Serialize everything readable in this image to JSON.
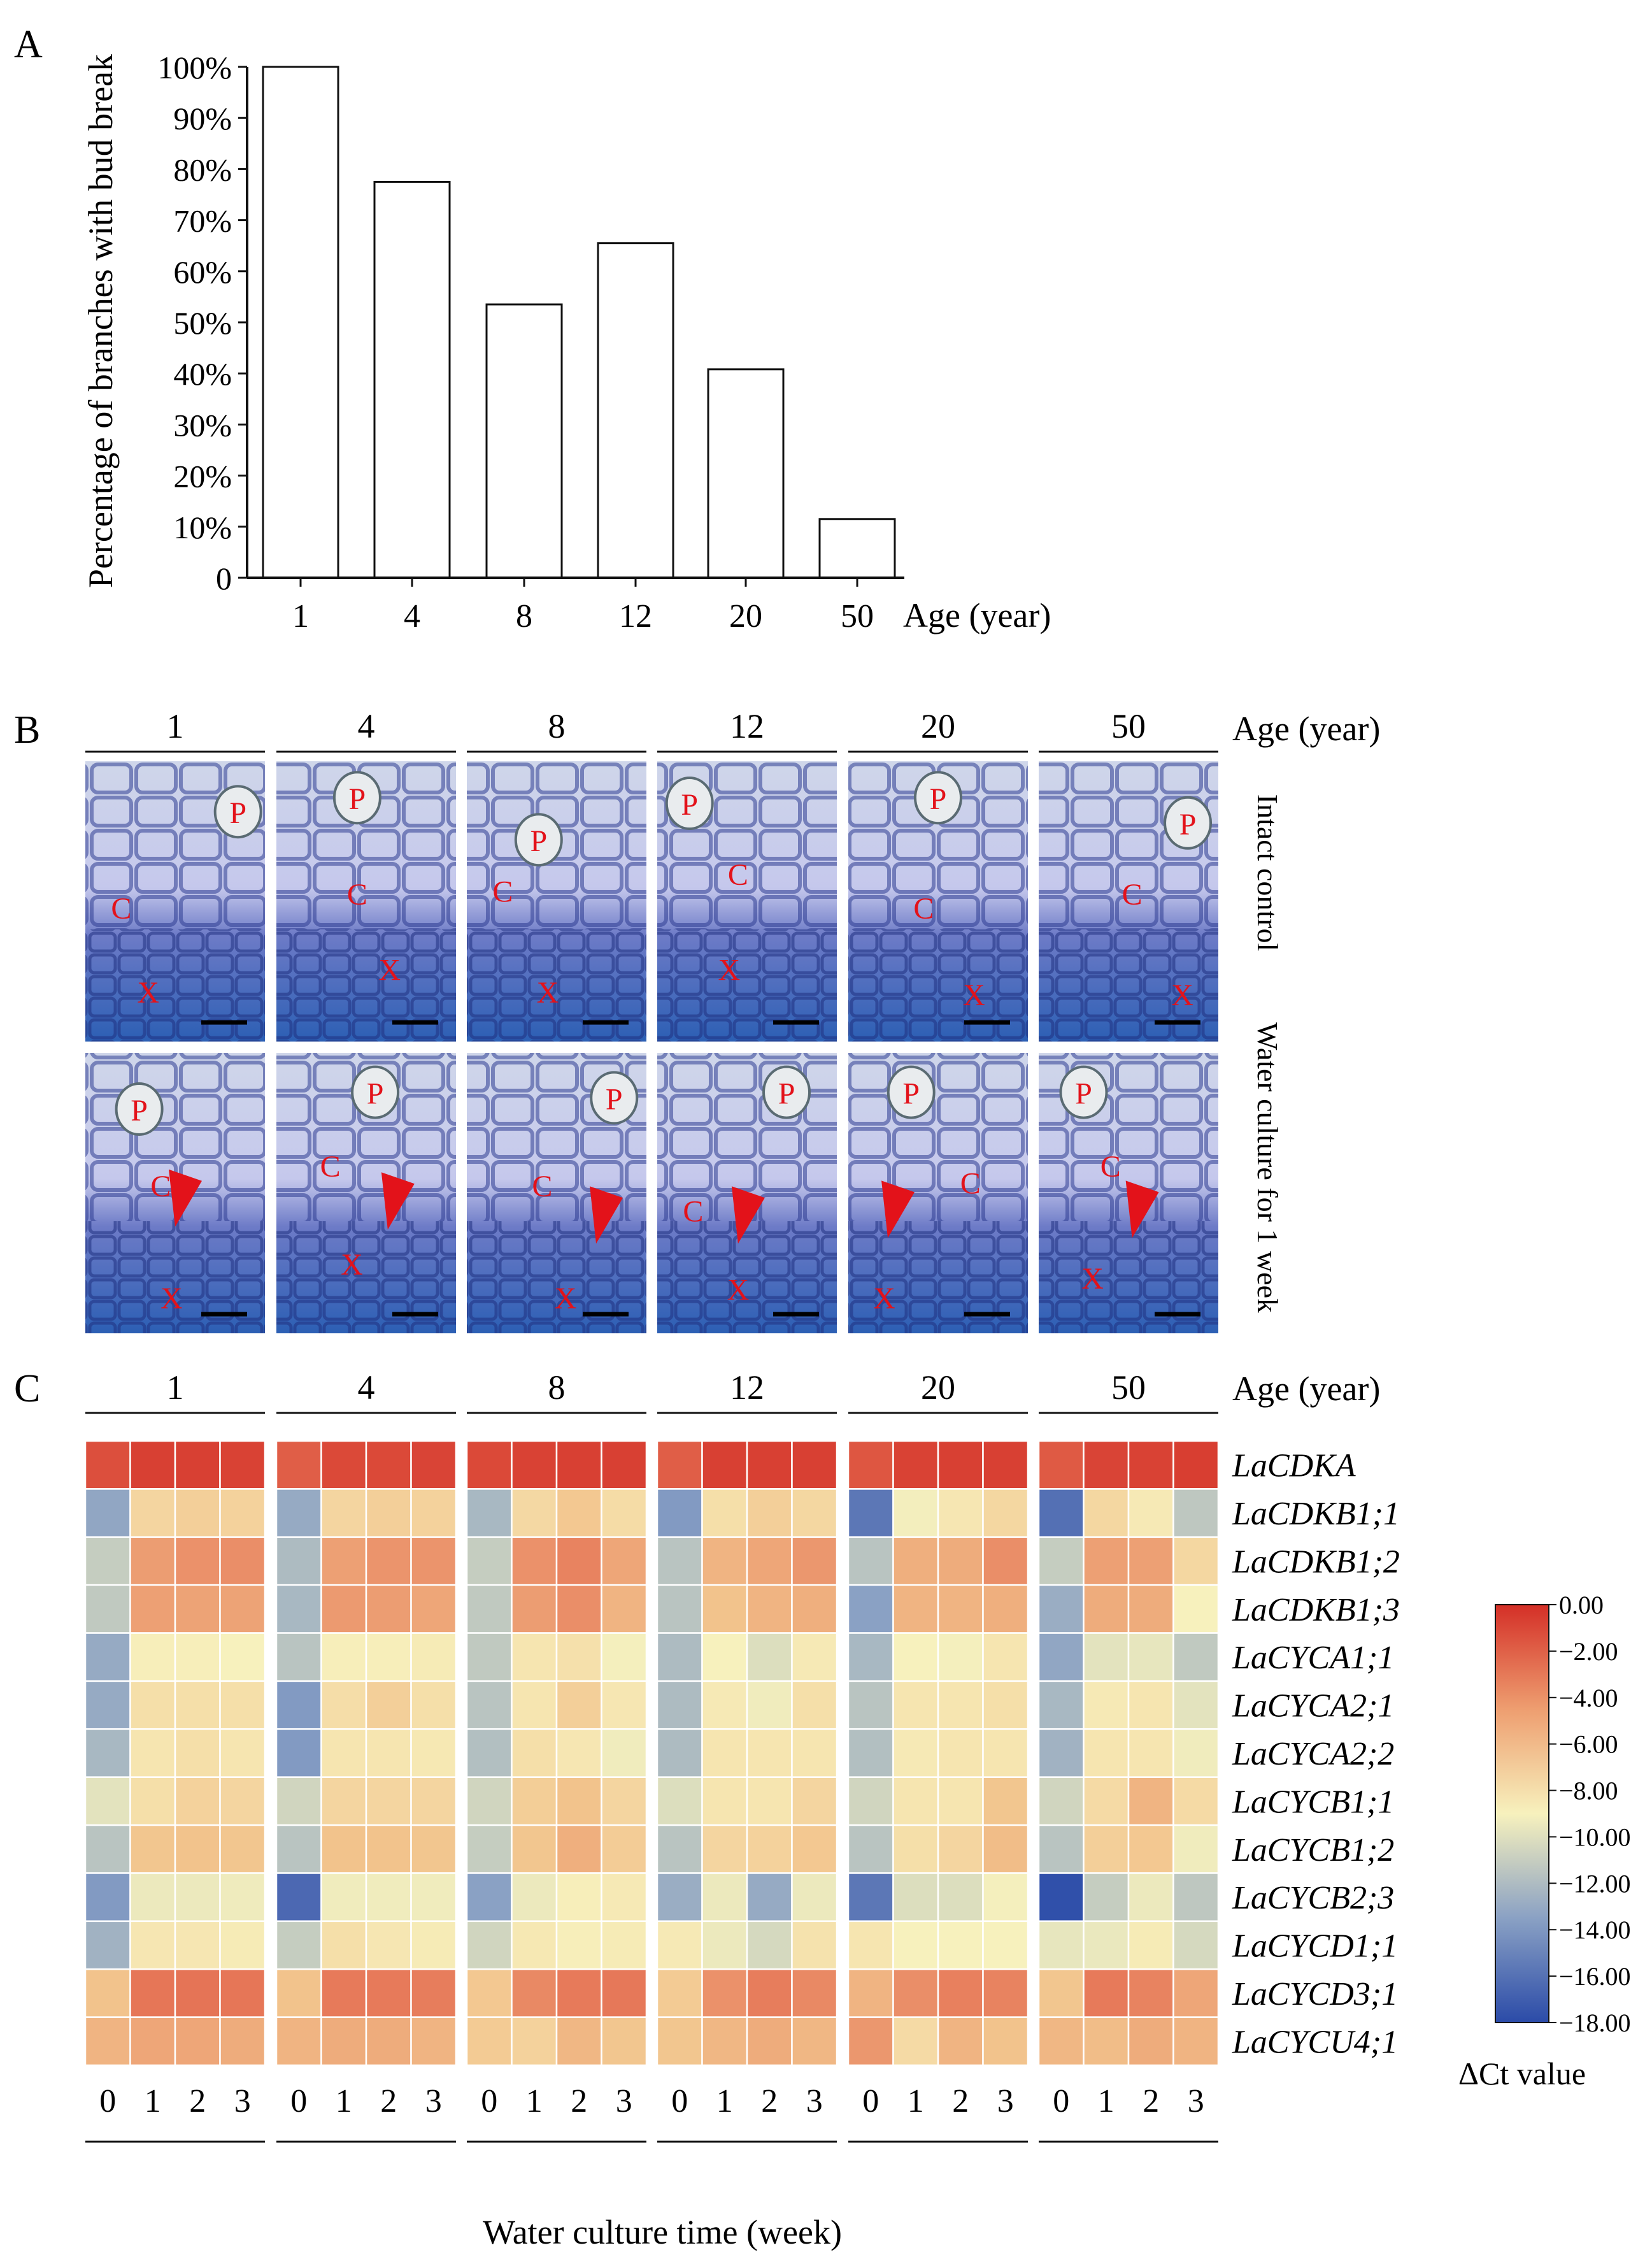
{
  "panel_labels": {
    "a": "A",
    "b": "B",
    "c": "C"
  },
  "colors": {
    "bar_fill": "#ffffff",
    "stroke": "#111111",
    "micrograph_label": "#e3121a",
    "arrowhead": "#e3121a",
    "stain_dark": "#2a3f9c",
    "stain_light": "#dfe6f2",
    "heat_low": "#2b4ba8",
    "heat_mid": "#f7f1bd",
    "heat_high": "#d42f27"
  },
  "chart_data": [
    {
      "type": "bar",
      "panel": "A",
      "categories": [
        "1",
        "4",
        "8",
        "12",
        "20",
        "50"
      ],
      "values": [
        100,
        77.5,
        53.5,
        65.5,
        40.8,
        11.5
      ],
      "ylim": [
        0,
        100
      ],
      "yticks": [
        "0",
        "10%",
        "20%",
        "30%",
        "40%",
        "50%",
        "60%",
        "70%",
        "80%",
        "90%",
        "100%"
      ],
      "ylabel": "Percentage of branches with bud break",
      "xlabel": "Age (year)",
      "grid": false
    },
    {
      "type": "heatmap",
      "panel": "C",
      "age_groups": [
        "1",
        "4",
        "8",
        "12",
        "20",
        "50"
      ],
      "group_title": "Age (year)",
      "weeks": [
        "0",
        "1",
        "2",
        "3"
      ],
      "xlabel": "Water culture time (week)",
      "genes": [
        "LaCDKA",
        "LaCDKB1;1",
        "LaCDKB1;2",
        "LaCDKB1;3",
        "LaCYCA1;1",
        "LaCYCA2;1",
        "LaCYCA2;2",
        "LaCYCB1;1",
        "LaCYCB1;2",
        "LaCYCB2;3",
        "LaCYCD1;1",
        "LaCYCD3;1",
        "LaCYCU4;1"
      ],
      "colorbar": {
        "label": "ΔCt value",
        "min": -18,
        "max": 0,
        "ticks": [
          "0.00",
          "−2.00",
          "−4.00",
          "−6.00",
          "−8.00",
          "−10.00",
          "−12.00",
          "−14.00",
          "−16.00",
          "−18.00"
        ]
      },
      "values": [
        [
          [
            -1.5,
            -0.8,
            -0.8,
            -0.9
          ],
          [
            -2.2,
            -1.2,
            -1.2,
            -1.0
          ],
          [
            -1.2,
            -0.9,
            -0.8,
            -0.8
          ],
          [
            -2.2,
            -0.8,
            -0.8,
            -0.8
          ],
          [
            -1.8,
            -0.9,
            -0.8,
            -0.8
          ],
          [
            -2.0,
            -1.0,
            -0.9,
            -0.7
          ]
        ],
        [
          [
            -14.2,
            -7.2,
            -6.8,
            -7.0
          ],
          [
            -14.0,
            -7.2,
            -6.8,
            -7.0
          ],
          [
            -13.2,
            -7.4,
            -6.3,
            -7.6
          ],
          [
            -14.8,
            -7.8,
            -6.8,
            -7.3
          ],
          [
            -16.2,
            -9.3,
            -8.3,
            -7.3
          ],
          [
            -16.5,
            -7.3,
            -8.5,
            -12.3
          ]
        ],
        [
          [
            -12.0,
            -4.7,
            -4.3,
            -4.2
          ],
          [
            -13.0,
            -4.8,
            -4.4,
            -4.4
          ],
          [
            -12.0,
            -4.3,
            -3.8,
            -5.0
          ],
          [
            -12.5,
            -5.5,
            -5.0,
            -4.5
          ],
          [
            -12.5,
            -5.3,
            -5.2,
            -4.2
          ],
          [
            -12.0,
            -4.8,
            -4.8,
            -7.3
          ]
        ],
        [
          [
            -12.2,
            -4.8,
            -4.9,
            -4.9
          ],
          [
            -13.2,
            -4.6,
            -4.7,
            -5.0
          ],
          [
            -12.2,
            -4.7,
            -4.2,
            -5.5
          ],
          [
            -12.5,
            -6.0,
            -5.5,
            -5.3
          ],
          [
            -14.5,
            -5.5,
            -5.5,
            -5.3
          ],
          [
            -13.8,
            -5.2,
            -5.2,
            -9.0
          ]
        ],
        [
          [
            -14.0,
            -8.8,
            -8.8,
            -9.0
          ],
          [
            -12.5,
            -8.8,
            -8.8,
            -8.6
          ],
          [
            -12.2,
            -8.2,
            -7.9,
            -9.2
          ],
          [
            -13.0,
            -9.0,
            -11.0,
            -8.5
          ],
          [
            -13.2,
            -9.0,
            -9.2,
            -8.2
          ],
          [
            -14.2,
            -10.5,
            -10.2,
            -12.2
          ]
        ],
        [
          [
            -14.0,
            -7.8,
            -7.8,
            -7.8
          ],
          [
            -14.8,
            -7.7,
            -6.8,
            -7.8
          ],
          [
            -12.5,
            -8.2,
            -6.8,
            -8.3
          ],
          [
            -13.0,
            -8.5,
            -9.5,
            -7.8
          ],
          [
            -12.5,
            -8.2,
            -8.2,
            -7.8
          ],
          [
            -13.2,
            -8.5,
            -8.2,
            -10.5
          ]
        ],
        [
          [
            -13.2,
            -8.2,
            -7.8,
            -8.2
          ],
          [
            -14.8,
            -8.2,
            -8.2,
            -8.4
          ],
          [
            -12.8,
            -7.8,
            -8.3,
            -9.5
          ],
          [
            -13.0,
            -8.2,
            -8.2,
            -8.2
          ],
          [
            -12.8,
            -8.5,
            -8.2,
            -8.2
          ],
          [
            -13.5,
            -8.2,
            -8.2,
            -9.5
          ]
        ],
        [
          [
            -10.5,
            -7.8,
            -7.0,
            -7.2
          ],
          [
            -11.5,
            -7.2,
            -7.2,
            -7.2
          ],
          [
            -11.5,
            -6.7,
            -6.0,
            -7.2
          ],
          [
            -11.0,
            -8.2,
            -8.2,
            -7.2
          ],
          [
            -11.5,
            -8.2,
            -8.2,
            -6.2
          ],
          [
            -11.5,
            -7.5,
            -5.5,
            -7.5
          ]
        ],
        [
          [
            -12.5,
            -6.2,
            -6.0,
            -6.2
          ],
          [
            -12.5,
            -6.0,
            -6.0,
            -6.2
          ],
          [
            -12.0,
            -6.2,
            -5.3,
            -6.6
          ],
          [
            -12.5,
            -7.2,
            -7.0,
            -6.3
          ],
          [
            -12.5,
            -7.8,
            -7.2,
            -5.8
          ],
          [
            -12.5,
            -6.8,
            -6.3,
            -9.5
          ]
        ],
        [
          [
            -14.8,
            -9.8,
            -9.8,
            -9.6
          ],
          [
            -16.8,
            -9.5,
            -9.5,
            -9.5
          ],
          [
            -14.5,
            -9.8,
            -8.8,
            -8.5
          ],
          [
            -13.8,
            -9.8,
            -14.0,
            -9.8
          ],
          [
            -16.2,
            -11.0,
            -11.0,
            -9.2
          ],
          [
            -17.8,
            -12.0,
            -9.8,
            -12.3
          ]
        ],
        [
          [
            -13.5,
            -8.3,
            -8.3,
            -8.6
          ],
          [
            -12.0,
            -7.8,
            -8.3,
            -8.6
          ],
          [
            -11.5,
            -8.4,
            -8.8,
            -8.6
          ],
          [
            -8.5,
            -9.8,
            -11.3,
            -8.0
          ],
          [
            -8.2,
            -9.0,
            -9.0,
            -9.0
          ],
          [
            -10.2,
            -10.0,
            -8.6,
            -11.3
          ]
        ],
        [
          [
            -6.0,
            -3.3,
            -3.2,
            -3.3
          ],
          [
            -6.0,
            -3.5,
            -3.5,
            -3.6
          ],
          [
            -6.3,
            -4.0,
            -3.5,
            -3.4
          ],
          [
            -6.5,
            -4.3,
            -3.6,
            -4.0
          ],
          [
            -5.5,
            -4.2,
            -3.7,
            -3.8
          ],
          [
            -6.2,
            -3.5,
            -3.8,
            -5.0
          ]
        ],
        [
          [
            -5.5,
            -5.0,
            -5.0,
            -5.2
          ],
          [
            -5.5,
            -5.2,
            -5.2,
            -5.5
          ],
          [
            -6.5,
            -7.0,
            -5.6,
            -6.2
          ],
          [
            -6.2,
            -5.6,
            -5.2,
            -5.6
          ],
          [
            -4.5,
            -7.5,
            -5.5,
            -6.0
          ],
          [
            -5.6,
            -5.8,
            -5.2,
            -5.5
          ]
        ]
      ]
    }
  ],
  "micrographs": {
    "ages": [
      "1",
      "4",
      "8",
      "12",
      "20",
      "50"
    ],
    "age_title": "Age (year)",
    "rows": [
      "Intact control",
      "Water culture for 1 week"
    ],
    "tissue_labels": {
      "phloem": "P",
      "cambium": "C",
      "xylem": "X"
    }
  }
}
